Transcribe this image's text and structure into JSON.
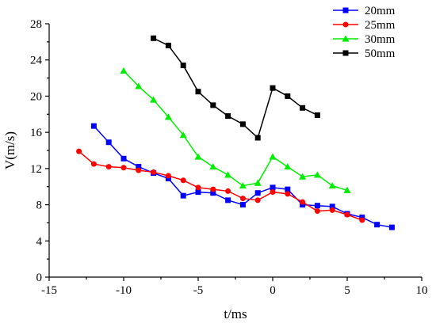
{
  "chart_data": {
    "type": "line",
    "xlabel": "t/ms",
    "ylabel": "V(m/s)",
    "xlim": [
      -15,
      10
    ],
    "ylim": [
      0,
      28
    ],
    "xticks": [
      -15,
      -10,
      -5,
      0,
      5,
      10
    ],
    "yticks": [
      0,
      4,
      8,
      12,
      16,
      20,
      24,
      28
    ],
    "grid": false,
    "legend_position": "top-right",
    "series": [
      {
        "name": "20mm",
        "color": "#0000ff",
        "marker": "square",
        "points": [
          [
            -12,
            16.7
          ],
          [
            -11,
            14.9
          ],
          [
            -10,
            13.1
          ],
          [
            -9,
            12.2
          ],
          [
            -8,
            11.5
          ],
          [
            -7,
            10.9
          ],
          [
            -6,
            9.0
          ],
          [
            -5,
            9.4
          ],
          [
            -4,
            9.3
          ],
          [
            -3,
            8.5
          ],
          [
            -2,
            8.0
          ],
          [
            -1,
            9.3
          ],
          [
            0,
            9.9
          ],
          [
            1,
            9.7
          ],
          [
            2,
            8.0
          ],
          [
            3,
            7.9
          ],
          [
            4,
            7.8
          ],
          [
            5,
            7.0
          ],
          [
            6,
            6.6
          ],
          [
            7,
            5.8
          ],
          [
            8,
            5.5
          ]
        ]
      },
      {
        "name": "25mm",
        "color": "#ff0000",
        "marker": "circle",
        "points": [
          [
            -13,
            13.9
          ],
          [
            -12,
            12.5
          ],
          [
            -11,
            12.2
          ],
          [
            -10,
            12.1
          ],
          [
            -9,
            11.8
          ],
          [
            -8,
            11.6
          ],
          [
            -7,
            11.2
          ],
          [
            -6,
            10.7
          ],
          [
            -5,
            9.9
          ],
          [
            -4,
            9.7
          ],
          [
            -3,
            9.5
          ],
          [
            -2,
            8.7
          ],
          [
            -1,
            8.5
          ],
          [
            0,
            9.4
          ],
          [
            1,
            9.2
          ],
          [
            2,
            8.3
          ],
          [
            3,
            7.3
          ],
          [
            4,
            7.4
          ],
          [
            5,
            6.9
          ],
          [
            6,
            6.3
          ]
        ]
      },
      {
        "name": "30mm",
        "color": "#00ee00",
        "marker": "triangle",
        "points": [
          [
            -10,
            22.8
          ],
          [
            -9,
            21.1
          ],
          [
            -8,
            19.6
          ],
          [
            -7,
            17.7
          ],
          [
            -6,
            15.7
          ],
          [
            -5,
            13.3
          ],
          [
            -4,
            12.2
          ],
          [
            -3,
            11.3
          ],
          [
            -2,
            10.1
          ],
          [
            -1,
            10.4
          ],
          [
            0,
            13.3
          ],
          [
            1,
            12.2
          ],
          [
            2,
            11.1
          ],
          [
            3,
            11.3
          ],
          [
            4,
            10.1
          ],
          [
            5,
            9.6
          ]
        ]
      },
      {
        "name": "50mm",
        "color": "#000000",
        "marker": "square",
        "points": [
          [
            -8,
            26.4
          ],
          [
            -7,
            25.6
          ],
          [
            -6,
            23.4
          ],
          [
            -5,
            20.5
          ],
          [
            -4,
            19.0
          ],
          [
            -3,
            17.8
          ],
          [
            -2,
            16.9
          ],
          [
            -1,
            15.4
          ],
          [
            0,
            20.9
          ],
          [
            1,
            20.0
          ],
          [
            2,
            18.7
          ],
          [
            3,
            17.9
          ]
        ]
      }
    ]
  }
}
